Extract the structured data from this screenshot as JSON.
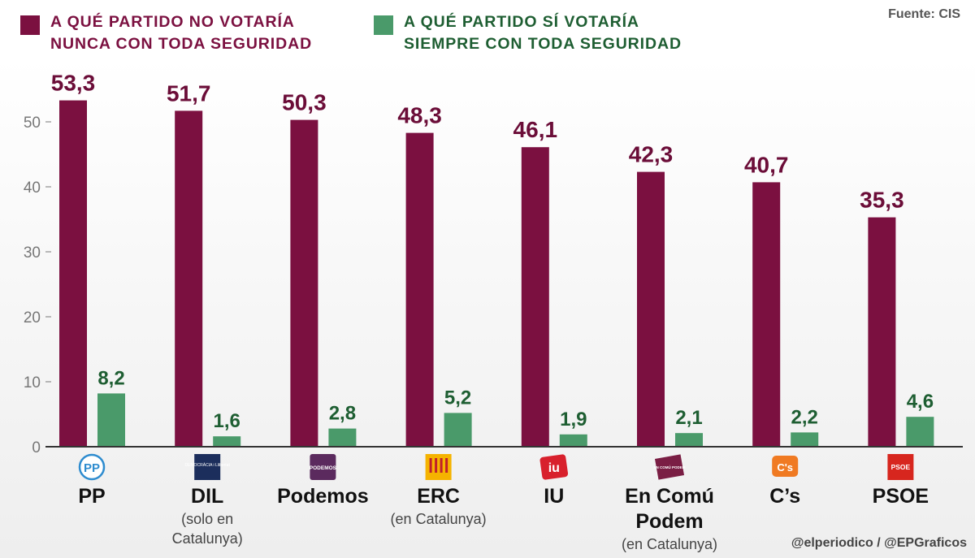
{
  "source": "Fuente: CIS",
  "credit": "@elperiodico / @EPGraficos",
  "legend": {
    "never": {
      "line1": "A QUÉ PARTIDO NO VOTARÍA",
      "line2": "NUNCA CON TODA SEGURIDAD",
      "color": "#7b1040"
    },
    "always": {
      "line1": "A QUÉ PARTIDO SÍ VOTARÍA",
      "line2": "SIEMPRE CON TODA SEGURIDAD",
      "color": "#4a9a6a"
    }
  },
  "parties": [
    {
      "name": "PP",
      "note1": "",
      "note2": "",
      "logo": "pp-logo",
      "logo_text": "PP"
    },
    {
      "name": "DIL",
      "note1": "(solo en",
      "note2": "Catalunya)",
      "logo": "dil-logo",
      "logo_text": "DEMOCRÀCIA i Llibertat"
    },
    {
      "name": "Podemos",
      "note1": "",
      "note2": "",
      "logo": "podemos-logo",
      "logo_text": "PODEMOS"
    },
    {
      "name": "ERC",
      "note1": "(en Catalunya)",
      "note2": "",
      "logo": "erc-logo",
      "logo_text": ""
    },
    {
      "name": "IU",
      "note1": "",
      "note2": "",
      "logo": "iu-logo",
      "logo_text": "iu"
    },
    {
      "name": "En Comú Podem",
      "note1": "(en Catalunya)",
      "note2": "",
      "logo": "en-comu-podem-logo",
      "logo_text": "EN COMÚ PODEM"
    },
    {
      "name": "C’s",
      "note1": "",
      "note2": "",
      "logo": "cs-logo",
      "logo_text": "C's"
    },
    {
      "name": "PSOE",
      "note1": "",
      "note2": "",
      "logo": "psoe-logo",
      "logo_text": "PSOE"
    }
  ],
  "chart_data": {
    "type": "bar",
    "categories": [
      "PP",
      "DIL",
      "Podemos",
      "ERC",
      "IU",
      "En Comú Podem",
      "C’s",
      "PSOE"
    ],
    "series": [
      {
        "name": "A QUÉ PARTIDO NO VOTARÍA NUNCA CON TODA SEGURIDAD",
        "color": "#7b1040",
        "values": [
          53.3,
          51.7,
          50.3,
          48.3,
          46.1,
          42.3,
          40.7,
          35.3
        ],
        "labels": [
          "53,3",
          "51,7",
          "50,3",
          "48,3",
          "46,1",
          "42,3",
          "40,7",
          "35,3"
        ]
      },
      {
        "name": "A QUÉ PARTIDO SÍ VOTARÍA SIEMPRE CON TODA SEGURIDAD",
        "color": "#4a9a6a",
        "values": [
          8.2,
          1.6,
          2.8,
          5.2,
          1.9,
          2.1,
          2.2,
          4.6
        ],
        "labels": [
          "8,2",
          "1,6",
          "2,8",
          "5,2",
          "1,9",
          "2,1",
          "2,2",
          "4,6"
        ]
      }
    ],
    "ylim": [
      0,
      55
    ],
    "yticks": [
      0,
      10,
      20,
      30,
      40,
      50
    ],
    "ytick_labels": [
      "0",
      "10",
      "20",
      "30",
      "40",
      "50"
    ],
    "never_label_color": "#6b0d38",
    "always_label_color": "#1e5e32"
  }
}
